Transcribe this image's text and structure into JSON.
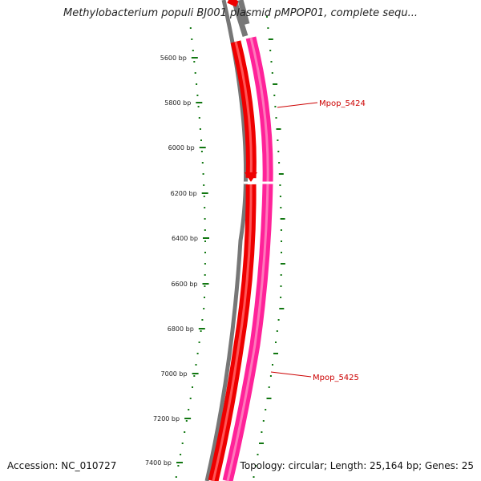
{
  "title": "Methylobacterium populi BJ001 plasmid pMPOP01, complete sequ...",
  "accession_text": "Accession: NC_010727",
  "summary_text": "Topology: circular; Length: 25,164 bp; Genes: 25",
  "tick_labels": [
    "5600 bp",
    "5800 bp",
    "6000 bp",
    "6200 bp",
    "6400 bp",
    "6600 bp",
    "6800 bp",
    "7000 bp",
    "7200 bp",
    "7400 bp"
  ],
  "genes": [
    {
      "label": "Mpop_5424",
      "strand": "reverse"
    },
    {
      "label": "Mpop_5425",
      "strand": "forward"
    }
  ],
  "colors": {
    "backbone": "#777777",
    "reverse_gene": "#ee0000",
    "forward_gene": "#ff2299",
    "tick": "#117711",
    "gene_label": "#cc0000"
  }
}
